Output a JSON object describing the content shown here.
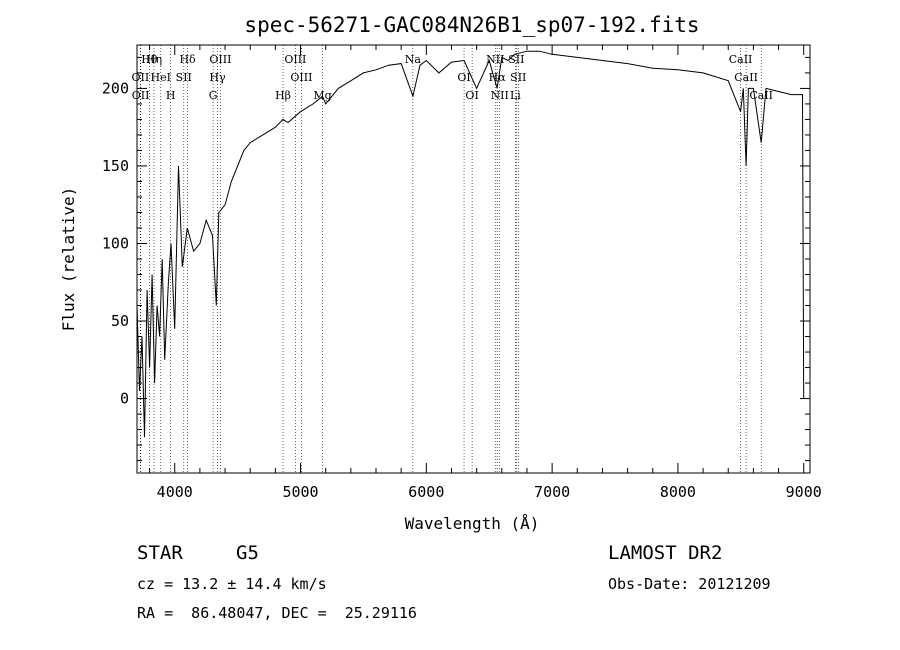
{
  "chart_data": {
    "type": "line",
    "title": "spec-56271-GAC084N26B1_sp07-192.fits",
    "xlabel": "Wavelength (Å)",
    "ylabel": "Flux (relative)",
    "xlim": [
      3700,
      9050
    ],
    "ylim": [
      -48,
      228
    ],
    "xticks": [
      4000,
      5000,
      6000,
      7000,
      8000,
      9000
    ],
    "xtick_labels": [
      "4000",
      "5000",
      "6000",
      "7000",
      "8000",
      "9000"
    ],
    "yticks": [
      0,
      50,
      100,
      150,
      200
    ],
    "ytick_labels": [
      "0",
      "50",
      "100",
      "150",
      "200"
    ],
    "grid": false,
    "series": [
      {
        "x": [
          3700,
          3720,
          3740,
          3760,
          3780,
          3800,
          3820,
          3840,
          3860,
          3880,
          3900,
          3920,
          3950,
          3970,
          4000,
          4030,
          4060,
          4100,
          4150,
          4200,
          4250,
          4300,
          4330,
          4350,
          4400,
          4450,
          4500,
          4550,
          4600,
          4700,
          4800,
          4861,
          4900,
          5000,
          5100,
          5175,
          5200,
          5300,
          5400,
          5500,
          5600,
          5700,
          5800,
          5893,
          5950,
          6000,
          6100,
          6200,
          6300,
          6400,
          6500,
          6563,
          6600,
          6650,
          6700,
          6800,
          6900,
          7000,
          7200,
          7400,
          7600,
          7800,
          8000,
          8200,
          8400,
          8498,
          8520,
          8542,
          8560,
          8600,
          8662,
          8700,
          8800,
          8900,
          8990,
          9000
        ],
        "y": [
          60,
          5,
          40,
          -25,
          70,
          20,
          80,
          10,
          60,
          40,
          90,
          25,
          75,
          100,
          45,
          150,
          85,
          110,
          95,
          100,
          115,
          105,
          60,
          120,
          125,
          140,
          150,
          160,
          165,
          170,
          175,
          180,
          178,
          185,
          190,
          195,
          190,
          200,
          205,
          210,
          212,
          215,
          216,
          195,
          215,
          218,
          210,
          217,
          218,
          200,
          218,
          200,
          220,
          218,
          222,
          224,
          224,
          222,
          220,
          218,
          216,
          213,
          212,
          210,
          205,
          185,
          200,
          150,
          200,
          200,
          165,
          200,
          198,
          196,
          196,
          0
        ]
      }
    ],
    "spectral_lines": [
      {
        "label": "Hθ",
        "x": 3798
      },
      {
        "label": "OII",
        "x": 3727
      },
      {
        "label": "OII",
        "x": 3729
      },
      {
        "label": "Hη",
        "x": 3835
      },
      {
        "label": "HeI",
        "x": 3889
      },
      {
        "label": "H",
        "x": 3968
      },
      {
        "label": "Hδ",
        "x": 4102
      },
      {
        "label": "SII",
        "x": 4072
      },
      {
        "label": "G",
        "x": 4305
      },
      {
        "label": "OIII",
        "x": 4363
      },
      {
        "label": "Hγ",
        "x": 4340
      },
      {
        "label": "Hβ",
        "x": 4861
      },
      {
        "label": "OIII",
        "x": 4959
      },
      {
        "label": "OIII",
        "x": 5007
      },
      {
        "label": "Mg",
        "x": 5175
      },
      {
        "label": "Na",
        "x": 5893
      },
      {
        "label": "OI",
        "x": 6300
      },
      {
        "label": "OI",
        "x": 6364
      },
      {
        "label": "NII",
        "x": 6548
      },
      {
        "label": "Hα",
        "x": 6563
      },
      {
        "label": "NII",
        "x": 6583
      },
      {
        "label": "SII",
        "x": 6716
      },
      {
        "label": "SII",
        "x": 6731
      },
      {
        "label": "Li",
        "x": 6708
      },
      {
        "label": "CaII",
        "x": 8498
      },
      {
        "label": "CaII",
        "x": 8542
      },
      {
        "label": "CaII",
        "x": 8662
      }
    ]
  },
  "info": {
    "star_class": "STAR",
    "subclass": "G5",
    "cz": "cz = 13.2 ± 14.4 km/s",
    "radec": "RA =  86.48047, DEC =  25.29116",
    "survey": "LAMOST DR2",
    "obs_date": "Obs-Date: 20121209"
  }
}
